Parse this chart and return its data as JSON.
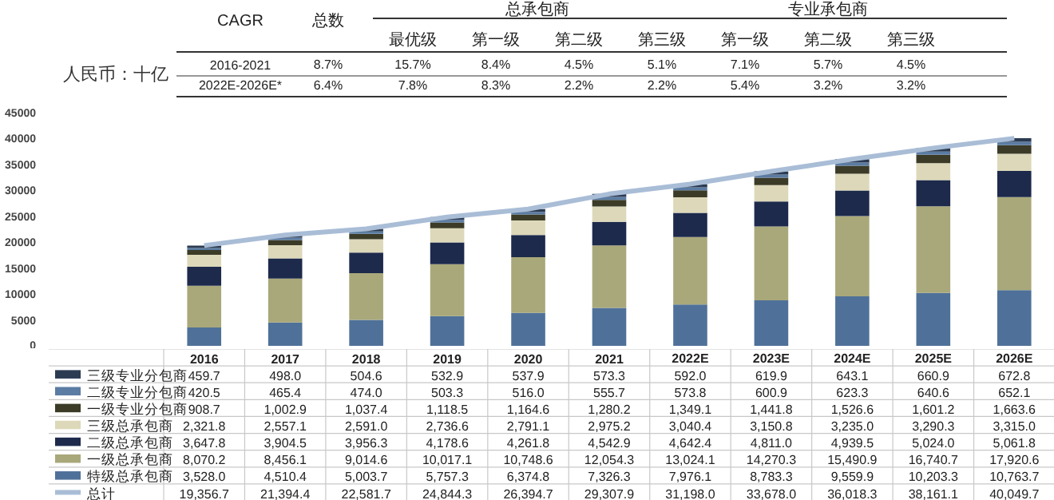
{
  "chart_data": {
    "type": "bar",
    "stacked": true,
    "ylabel": "人民币：十亿",
    "categories": [
      "2016",
      "2017",
      "2018",
      "2019",
      "2020",
      "2021",
      "2022E",
      "2023E",
      "2024E",
      "2025E",
      "2026E"
    ],
    "series": [
      {
        "name": "特级总承包商",
        "color": "#4f7199",
        "values": [
          3528.0,
          4510.4,
          5003.7,
          5757.3,
          6374.8,
          7326.3,
          7976.1,
          8783.3,
          9559.9,
          10203.3,
          10763.7
        ],
        "value_labels": [
          "3,528.0",
          "4,510.4",
          "5,003.7",
          "5,757.3",
          "6,374.8",
          "7,326.3",
          "7,976.1",
          "8,783.3",
          "9,559.9",
          "10,203.3",
          "10,763.7"
        ]
      },
      {
        "name": "一级总承包商",
        "color": "#a9a87a",
        "values": [
          8070.2,
          8456.1,
          9014.6,
          10017.1,
          10748.6,
          12054.3,
          13024.1,
          14270.3,
          15490.9,
          16740.7,
          17920.6
        ],
        "value_labels": [
          "8,070.2",
          "8,456.1",
          "9,014.6",
          "10,017.1",
          "10,748.6",
          "12,054.3",
          "13,024.1",
          "14,270.3",
          "15,490.9",
          "16,740.7",
          "17,920.6"
        ]
      },
      {
        "name": "二级总承包商",
        "color": "#1d2a4c",
        "values": [
          3647.8,
          3904.5,
          3956.3,
          4178.6,
          4261.8,
          4542.9,
          4642.4,
          4811.0,
          4939.5,
          5024.0,
          5061.8
        ],
        "value_labels": [
          "3,647.8",
          "3,904.5",
          "3,956.3",
          "4,178.6",
          "4,261.8",
          "4,542.9",
          "4,642.4",
          "4,811.0",
          "4,939.5",
          "5,024.0",
          "5,061.8"
        ]
      },
      {
        "name": "三级总承包商",
        "color": "#dcd8b9",
        "values": [
          2321.8,
          2557.1,
          2591.0,
          2736.6,
          2791.1,
          2975.2,
          3040.4,
          3150.8,
          3235.0,
          3290.3,
          3315.0
        ],
        "value_labels": [
          "2,321.8",
          "2,557.1",
          "2,591.0",
          "2,736.6",
          "2,791.1",
          "2,975.2",
          "3,040.4",
          "3,150.8",
          "3,235.0",
          "3,290.3",
          "3,315.0"
        ]
      },
      {
        "name": "一级专业分包商",
        "color": "#3b3b27",
        "values": [
          908.7,
          1002.9,
          1037.4,
          1118.5,
          1164.6,
          1280.2,
          1349.1,
          1441.8,
          1526.6,
          1601.2,
          1663.6
        ],
        "value_labels": [
          "908.7",
          "1,002.9",
          "1,037.4",
          "1,118.5",
          "1,164.6",
          "1,280.2",
          "1,349.1",
          "1,441.8",
          "1,526.6",
          "1,601.2",
          "1,663.6"
        ]
      },
      {
        "name": "二级专业分包商",
        "color": "#5b7ca3",
        "values": [
          420.5,
          465.4,
          474.0,
          503.3,
          516.0,
          555.7,
          573.8,
          600.9,
          623.3,
          640.6,
          652.1
        ],
        "value_labels": [
          "420.5",
          "465.4",
          "474.0",
          "503.3",
          "516.0",
          "555.7",
          "573.8",
          "600.9",
          "623.3",
          "640.6",
          "652.1"
        ]
      },
      {
        "name": "三级专业分包商",
        "color": "#2b3b52",
        "values": [
          459.7,
          498.0,
          504.6,
          532.9,
          537.9,
          573.3,
          592.0,
          619.9,
          643.1,
          660.9,
          672.8
        ],
        "value_labels": [
          "459.7",
          "498.0",
          "504.6",
          "532.9",
          "537.9",
          "573.3",
          "592.0",
          "619.9",
          "643.1",
          "660.9",
          "672.8"
        ]
      },
      {
        "name": "总计",
        "type": "line",
        "color": "#a9bdd6",
        "values": [
          19356.7,
          21394.4,
          22581.7,
          24844.3,
          26394.7,
          29307.9,
          31198.0,
          33678.0,
          36018.3,
          38161.1,
          40049.7
        ],
        "value_labels": [
          "19,356.7",
          "21,394.4",
          "22,581.7",
          "24,844.3",
          "26,394.7",
          "29,307.9",
          "31,198.0",
          "33,678.0",
          "36,018.3",
          "38,161.1",
          "40,049.7"
        ]
      }
    ],
    "ylim": [
      0,
      45000
    ],
    "yticks": [
      0,
      5000,
      10000,
      15000,
      20000,
      25000,
      30000,
      35000,
      40000,
      45000
    ],
    "legend": "bottom",
    "annotations": [
      "CAGR",
      "总数",
      "总承包商",
      "专业承包商",
      "最优级",
      "第一级",
      "第二级",
      "第三级",
      "第一级",
      "第二级",
      "第三级",
      "2016-2021",
      "8.7%",
      "15.7%",
      "8.4%",
      "4.5%",
      "5.1%",
      "7.1%",
      "5.7%",
      "4.5%",
      "2022E-2026E*",
      "6.4%",
      "7.8%",
      "8.3%",
      "2.2%",
      "2.2%",
      "5.4%",
      "3.2%",
      "3.2%"
    ]
  }
}
